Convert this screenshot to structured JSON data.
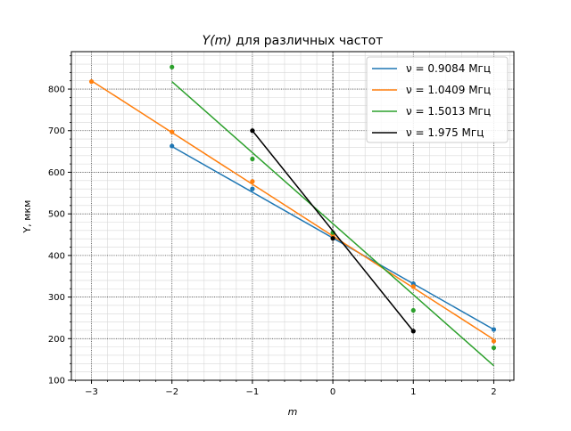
{
  "chart_data": {
    "type": "line",
    "title": "Y(m) для различных частот",
    "title_parts": {
      "math": "Y(m)",
      "text": " для различных частот"
    },
    "xlabel": "m",
    "ylabel": "Y, мкм",
    "xlim": [
      -3.25,
      2.25
    ],
    "ylim": [
      100,
      890
    ],
    "xticks": [
      -3,
      -2,
      -1,
      0,
      1,
      2
    ],
    "xtick_labels": [
      "−3",
      "−2",
      "−1",
      "0",
      "1",
      "2"
    ],
    "yticks": [
      100,
      200,
      300,
      400,
      500,
      600,
      700,
      800
    ],
    "ytick_labels": [
      "100",
      "200",
      "300",
      "400",
      "500",
      "600",
      "700",
      "800"
    ],
    "grid": true,
    "minor_grid": true,
    "reference_lines": {
      "x": 0
    },
    "legend_position": "top-right",
    "series": [
      {
        "name": "ν = 0.9084 Мгц",
        "color": "#1f77b4",
        "points_x": [
          -2,
          -1,
          0,
          1,
          2
        ],
        "points_y": [
          663,
          560,
          445,
          332,
          222
        ],
        "fit_x": [
          -2,
          2
        ],
        "fit_y": [
          662,
          222
        ]
      },
      {
        "name": "ν = 1.0409 Мгц",
        "color": "#ff7f0e",
        "points_x": [
          -3,
          -2,
          -1,
          0,
          1,
          2
        ],
        "points_y": [
          818,
          697,
          578,
          448,
          325,
          194
        ],
        "fit_x": [
          -3,
          2
        ],
        "fit_y": [
          820,
          198
        ]
      },
      {
        "name": "ν = 1.5013 Мгц",
        "color": "#2ca02c",
        "points_x": [
          -2,
          -1,
          0,
          1,
          2
        ],
        "points_y": [
          853,
          632,
          455,
          268,
          178
        ],
        "fit_x": [
          -2,
          2
        ],
        "fit_y": [
          818,
          135
        ]
      },
      {
        "name": "ν = 1.975 Мгц",
        "color": "#000000",
        "points_x": [
          -1,
          0,
          1
        ],
        "points_y": [
          700,
          441,
          218
        ],
        "fit_x": [
          -1,
          1
        ],
        "fit_y": [
          700,
          218
        ]
      }
    ]
  }
}
